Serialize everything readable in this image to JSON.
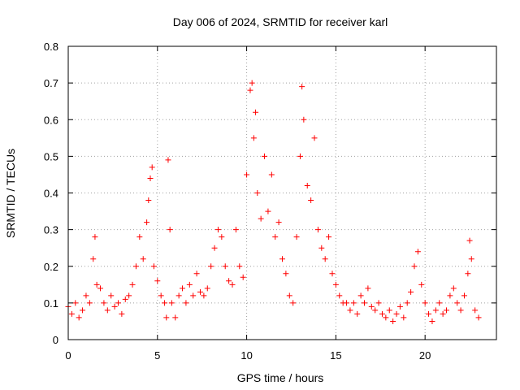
{
  "chart_data": {
    "type": "scatter",
    "title": "Day 006 of 2024, SRMTID for receiver karl",
    "xlabel": "GPS time / hours",
    "ylabel": "SRMTID / TECUs",
    "xlim": [
      0,
      24
    ],
    "ylim": [
      0,
      0.8
    ],
    "xticks": [
      "0",
      "5",
      "10",
      "15",
      "20"
    ],
    "yticks": [
      "0",
      "0.1",
      "0.2",
      "0.3",
      "0.4",
      "0.5",
      "0.6",
      "0.7",
      "0.8"
    ],
    "grid": true,
    "marker": "+",
    "series": [
      {
        "name": "SRMTID",
        "color": "#ff0000",
        "x": [
          0.0,
          0.2,
          0.4,
          0.6,
          0.8,
          1.0,
          1.2,
          1.4,
          1.5,
          1.6,
          1.8,
          2.0,
          2.2,
          2.4,
          2.6,
          2.8,
          3.0,
          3.2,
          3.4,
          3.6,
          3.8,
          4.0,
          4.2,
          4.4,
          4.5,
          4.6,
          4.7,
          4.8,
          5.0,
          5.2,
          5.4,
          5.5,
          5.6,
          5.7,
          5.8,
          6.0,
          6.2,
          6.4,
          6.6,
          6.8,
          7.0,
          7.2,
          7.4,
          7.6,
          7.8,
          8.0,
          8.2,
          8.4,
          8.6,
          8.8,
          9.0,
          9.2,
          9.4,
          9.6,
          9.8,
          10.0,
          10.2,
          10.3,
          10.4,
          10.5,
          10.6,
          10.8,
          11.0,
          11.2,
          11.4,
          11.6,
          11.8,
          12.0,
          12.2,
          12.4,
          12.6,
          12.8,
          13.0,
          13.1,
          13.2,
          13.4,
          13.6,
          13.8,
          14.0,
          14.2,
          14.4,
          14.6,
          14.8,
          15.0,
          15.2,
          15.4,
          15.6,
          15.8,
          16.0,
          16.2,
          16.4,
          16.6,
          16.8,
          17.0,
          17.2,
          17.4,
          17.6,
          17.8,
          18.0,
          18.2,
          18.4,
          18.6,
          18.8,
          19.0,
          19.2,
          19.4,
          19.6,
          19.8,
          20.0,
          20.2,
          20.4,
          20.6,
          20.8,
          21.0,
          21.2,
          21.4,
          21.6,
          21.8,
          22.0,
          22.2,
          22.4,
          22.5,
          22.6,
          22.8,
          23.0
        ],
        "y": [
          0.09,
          0.07,
          0.1,
          0.06,
          0.08,
          0.12,
          0.1,
          0.22,
          0.28,
          0.15,
          0.14,
          0.1,
          0.08,
          0.12,
          0.09,
          0.1,
          0.07,
          0.11,
          0.12,
          0.15,
          0.2,
          0.28,
          0.22,
          0.32,
          0.38,
          0.44,
          0.47,
          0.2,
          0.16,
          0.12,
          0.1,
          0.06,
          0.49,
          0.3,
          0.1,
          0.06,
          0.12,
          0.14,
          0.1,
          0.15,
          0.12,
          0.18,
          0.13,
          0.12,
          0.14,
          0.2,
          0.25,
          0.3,
          0.28,
          0.2,
          0.16,
          0.15,
          0.3,
          0.2,
          0.17,
          0.45,
          0.68,
          0.7,
          0.55,
          0.62,
          0.4,
          0.33,
          0.5,
          0.35,
          0.45,
          0.28,
          0.32,
          0.22,
          0.18,
          0.12,
          0.1,
          0.28,
          0.5,
          0.69,
          0.6,
          0.42,
          0.38,
          0.55,
          0.3,
          0.25,
          0.22,
          0.28,
          0.18,
          0.15,
          0.12,
          0.1,
          0.1,
          0.08,
          0.1,
          0.07,
          0.12,
          0.1,
          0.14,
          0.09,
          0.08,
          0.1,
          0.07,
          0.06,
          0.08,
          0.05,
          0.07,
          0.09,
          0.06,
          0.1,
          0.13,
          0.2,
          0.24,
          0.15,
          0.1,
          0.07,
          0.05,
          0.08,
          0.1,
          0.07,
          0.08,
          0.12,
          0.14,
          0.1,
          0.08,
          0.12,
          0.18,
          0.27,
          0.22,
          0.08,
          0.06
        ]
      }
    ]
  }
}
